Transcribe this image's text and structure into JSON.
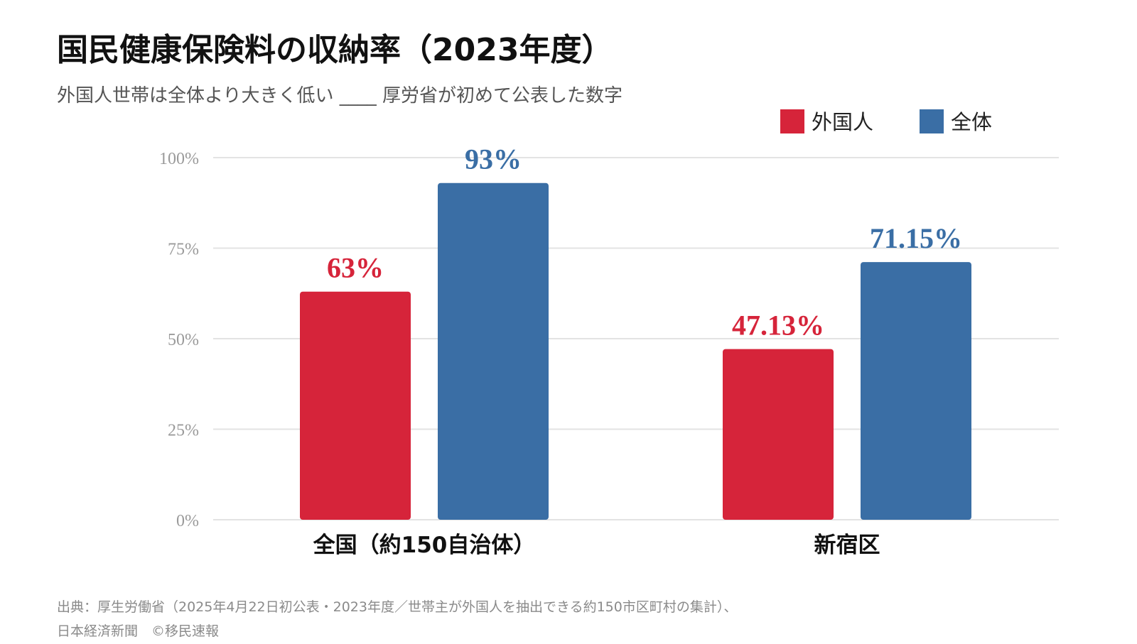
{
  "title": "国民健康保険料の収納率（2023年度）",
  "subtitle": "外国人世帯は全体より大きく低い ____ 厚労省が初めて公表した数字",
  "source_line1": "出典：厚生労働省（2025年4月22日初公表・2023年度／世帯主が外国人を抽出できる約150市区町村の集計）、",
  "source_line2": "日本経済新聞　©移民速報",
  "colors": {
    "foreign": "#d6243a",
    "overall": "#3a6ea5",
    "grid": "#e3e3e3",
    "tick": "#9a9a9a"
  },
  "chart_data": {
    "type": "bar",
    "title": "国民健康保険料の収納率（2023年度）",
    "categories": [
      "全国（約150自治体）",
      "新宿区"
    ],
    "series": [
      {
        "name": "外国人",
        "values": [
          63,
          47.13
        ],
        "labels": [
          "63%",
          "47.13%"
        ]
      },
      {
        "name": "全体",
        "values": [
          93,
          71.15
        ],
        "labels": [
          "93%",
          "71.15%"
        ]
      }
    ],
    "ylim": [
      0,
      100
    ],
    "yticks": [
      "0%",
      "25%",
      "50%",
      "75%",
      "100%"
    ],
    "grid": true,
    "legend": "top-right"
  }
}
